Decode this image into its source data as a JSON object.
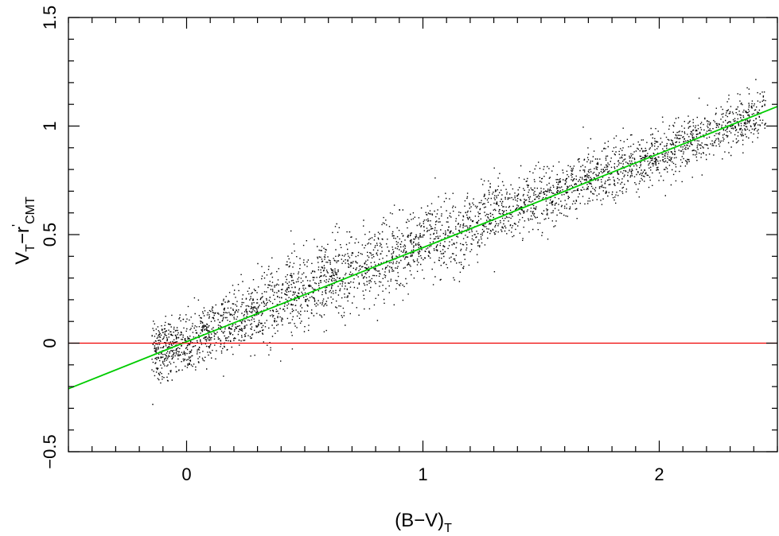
{
  "chart_data": {
    "type": "scatter",
    "title": "",
    "xlabel": "(B−V)",
    "xlabel_sub": "T",
    "ylabel_parts": {
      "main": "V",
      "sub1": "T",
      "mid": "−r",
      "sup": "'",
      "sub2": "CMT"
    },
    "xlim": [
      -0.5,
      2.5
    ],
    "ylim": [
      -0.5,
      1.5
    ],
    "x_ticks": [
      0,
      1,
      2
    ],
    "x_tick_labels": [
      "0",
      "1",
      "2"
    ],
    "y_ticks": [
      -0.5,
      0,
      0.5,
      1,
      1.5
    ],
    "y_tick_labels": [
      "−0.5",
      "0",
      "0.5",
      "1",
      "1.5"
    ],
    "x_minor_step": 0.1,
    "y_minor_step": 0.1,
    "grid": false,
    "scatter_cloud": {
      "color": "#000000",
      "ridge": [
        {
          "x": -0.15,
          "y": -0.04
        },
        {
          "x": 0.0,
          "y": 0.0
        },
        {
          "x": 0.5,
          "y": 0.25
        },
        {
          "x": 1.0,
          "y": 0.46
        },
        {
          "x": 1.5,
          "y": 0.67
        },
        {
          "x": 2.0,
          "y": 0.87
        },
        {
          "x": 2.3,
          "y": 1.0
        }
      ],
      "x_extent": [
        -0.15,
        2.45
      ],
      "y_spread_sd": 0.07
    },
    "lines": [
      {
        "color": "#00cc00",
        "kind": "fit",
        "points": [
          [
            -0.5,
            -0.21
          ],
          [
            2.5,
            1.09
          ]
        ]
      },
      {
        "color": "#ee0000",
        "kind": "reference",
        "points": [
          [
            -0.5,
            0.0
          ],
          [
            2.5,
            0.0
          ]
        ]
      }
    ]
  }
}
